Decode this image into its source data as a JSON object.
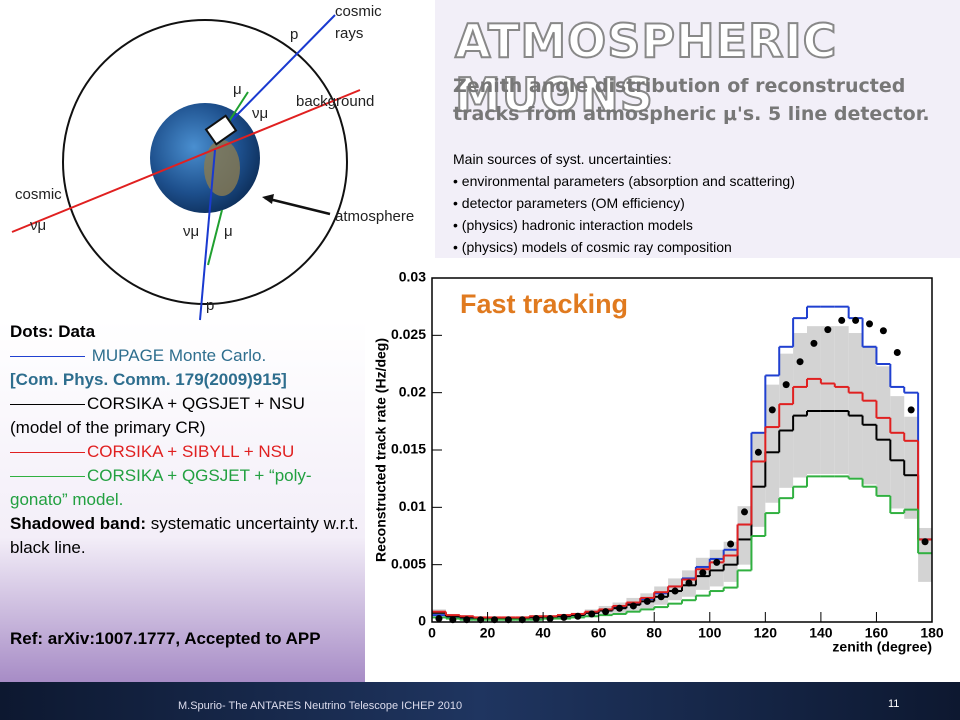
{
  "header": {
    "title": "ATMOSPHERIC MUONS",
    "subtitle": "Zenith angle distribution of reconstructed tracks from atmospheric μ's.  5 line detector.",
    "sources_heading": "Main sources of syst. uncertainties:",
    "sources": [
      "environmental parameters (absorption and scattering)",
      "detector parameters (OM efficiency)",
      "(physics)  hadronic interaction models",
      "(physics)  models of cosmic ray composition"
    ]
  },
  "diagram": {
    "labels": [
      "cosmic",
      "rays",
      "p",
      "μ",
      "νμ",
      "background",
      "cosmic",
      "νμ",
      "atmosphere",
      "νμ",
      "μ",
      "p"
    ]
  },
  "left_panel": {
    "dots_label": "Dots:",
    "reference": "[Com. Phys. Comm. 179(2009)915]",
    "model_note": "(model of the primary CR)",
    "band_label": "Shadowed band:",
    "band_text": "systematic uncertainty w.r.t. black line.",
    "ref": "Ref: arXiv:1007.1777, Accepted to APP"
  },
  "footer": {
    "text": "M.Spurio- The ANTARES Neutrino Telescope    ICHEP 2010",
    "page": "11"
  },
  "chart_data": {
    "type": "histogram",
    "annotation": "Fast tracking",
    "x_label": "zenith (degree)",
    "y_label": "Reconstructed track rate (Hz/deg)",
    "bins": [
      0,
      5,
      10,
      15,
      20,
      25,
      30,
      35,
      40,
      45,
      50,
      55,
      60,
      65,
      70,
      75,
      80,
      85,
      90,
      95,
      100,
      105,
      110,
      115,
      120,
      125,
      130,
      135,
      140,
      145,
      150,
      155,
      160,
      165,
      170,
      175,
      180
    ],
    "xlim": [
      0,
      180
    ],
    "xticks": [
      0,
      20,
      40,
      60,
      80,
      100,
      120,
      140,
      160,
      180
    ],
    "ylim": [
      0,
      0.03
    ],
    "yticks": [
      0,
      0.005,
      0.01,
      0.015,
      0.02,
      0.025,
      0.03
    ],
    "band": {
      "color": "#d3d3d3",
      "lower": [
        0.0006,
        0.0004,
        0.0003,
        0.0002,
        0.0002,
        0.0002,
        0.0002,
        0.0003,
        0.0003,
        0.0004,
        0.0004,
        0.0006,
        0.0007,
        0.0008,
        0.001,
        0.0012,
        0.0015,
        0.0019,
        0.0022,
        0.0028,
        0.0031,
        0.0035,
        0.005,
        0.0083,
        0.0104,
        0.0117,
        0.0126,
        0.0129,
        0.0129,
        0.0129,
        0.0126,
        0.012,
        0.0111,
        0.0099,
        0.009,
        0.0035
      ],
      "upper": [
        0.0011,
        0.0007,
        0.0006,
        0.0004,
        0.0004,
        0.0004,
        0.0004,
        0.0006,
        0.0006,
        0.0007,
        0.0008,
        0.0011,
        0.0014,
        0.0017,
        0.0021,
        0.0025,
        0.0031,
        0.0038,
        0.0045,
        0.0056,
        0.0063,
        0.007,
        0.0101,
        0.0165,
        0.0207,
        0.0234,
        0.0252,
        0.0258,
        0.0258,
        0.0258,
        0.0252,
        0.0241,
        0.0223,
        0.0197,
        0.0179,
        0.0082
      ]
    },
    "series": [
      {
        "name": "MUPAGE Monte Carlo.",
        "color": "#2040d0",
        "text_color": "#2e6e8e",
        "values": [
          0.0006,
          0.0004,
          0.0003,
          0.0003,
          0.0003,
          0.0003,
          0.0003,
          0.0004,
          0.0004,
          0.0005,
          0.0006,
          0.0008,
          0.001,
          0.0013,
          0.0016,
          0.002,
          0.0025,
          0.0031,
          0.0038,
          0.0048,
          0.0055,
          0.0063,
          0.0085,
          0.0165,
          0.0215,
          0.024,
          0.0265,
          0.0275,
          0.0275,
          0.0275,
          0.0265,
          0.024,
          0.0225,
          0.0205,
          0.02,
          0.0072
        ]
      },
      {
        "name": "CORSIKA + QGSJET + NSU",
        "color": "#000000",
        "text_color": "#000000",
        "values": [
          0.0008,
          0.0005,
          0.0004,
          0.0003,
          0.0003,
          0.0003,
          0.0003,
          0.0004,
          0.0004,
          0.0005,
          0.0006,
          0.0008,
          0.001,
          0.0012,
          0.0015,
          0.0018,
          0.0022,
          0.0027,
          0.0032,
          0.004,
          0.0045,
          0.005,
          0.0072,
          0.0118,
          0.0148,
          0.0167,
          0.018,
          0.0184,
          0.0184,
          0.0184,
          0.018,
          0.0172,
          0.0159,
          0.0141,
          0.0128,
          0.0072
        ]
      },
      {
        "name": "CORSIKA + SIBYLL + NSU",
        "color": "#e02020",
        "text_color": "#e02020",
        "values": [
          0.0009,
          0.0006,
          0.0005,
          0.0004,
          0.0004,
          0.0004,
          0.0004,
          0.0005,
          0.0005,
          0.0006,
          0.0007,
          0.0009,
          0.0011,
          0.0014,
          0.0017,
          0.0021,
          0.0026,
          0.0031,
          0.0037,
          0.0046,
          0.0052,
          0.0058,
          0.0085,
          0.014,
          0.017,
          0.019,
          0.0205,
          0.0212,
          0.0208,
          0.0205,
          0.02,
          0.0193,
          0.0178,
          0.0165,
          0.0158,
          0.0072
        ]
      },
      {
        "name": "CORSIKA + QGSJET + “poly-gonato” model.",
        "color": "#30b040",
        "text_color": "#22a040",
        "values": [
          0.0004,
          0.0003,
          0.0002,
          0.0002,
          0.0002,
          0.0002,
          0.0002,
          0.0002,
          0.0003,
          0.0003,
          0.0004,
          0.0005,
          0.0006,
          0.0007,
          0.0009,
          0.0011,
          0.0013,
          0.0016,
          0.0019,
          0.0023,
          0.0027,
          0.003,
          0.0045,
          0.0075,
          0.0095,
          0.0108,
          0.0118,
          0.0127,
          0.0127,
          0.0127,
          0.0125,
          0.0118,
          0.011,
          0.0095,
          0.0098,
          0.006
        ]
      }
    ],
    "data": {
      "name": "Data",
      "color": "#000000",
      "values": [
        0.0003,
        0.0002,
        0.0002,
        0.0002,
        0.0002,
        0.0002,
        0.0002,
        0.0003,
        0.0003,
        0.0004,
        0.0005,
        0.0007,
        0.0009,
        0.0012,
        0.0014,
        0.0018,
        0.0022,
        0.0027,
        0.0034,
        0.0043,
        0.0052,
        0.0068,
        0.0096,
        0.0148,
        0.0185,
        0.0207,
        0.0227,
        0.0243,
        0.0255,
        0.0263,
        0.0263,
        0.026,
        0.0254,
        0.0235,
        0.0185,
        0.007
      ]
    }
  }
}
